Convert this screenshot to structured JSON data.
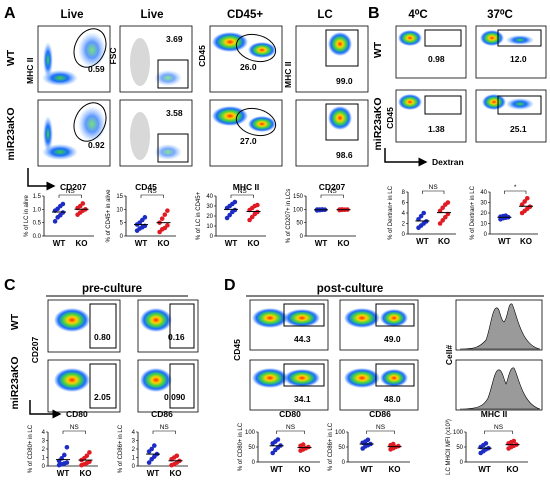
{
  "panel_labels": {
    "A": "A",
    "B": "B",
    "C": "C",
    "D": "D"
  },
  "panel_A": {
    "col_headers": [
      "Live",
      "Live",
      "CD45+",
      "LC"
    ],
    "row_labels": [
      "WT",
      "miR23aKO"
    ],
    "plot_axes": [
      {
        "x": "CD207",
        "y": "MHC II"
      },
      {
        "x": "CD45",
        "y": "FSC"
      },
      {
        "x": "MHC II",
        "y": "CD45"
      },
      {
        "x": "CD207",
        "y": "MHC II"
      }
    ],
    "gate_values": {
      "WT": [
        "0.59",
        "3.69",
        "26.0",
        "99.0"
      ],
      "KO": [
        "0.92",
        "3.58",
        "27.0",
        "98.6"
      ]
    }
  },
  "panel_B": {
    "col_headers": [
      "4⁰C",
      "37⁰C"
    ],
    "row_labels": [
      "WT",
      "miR23aKO"
    ],
    "y_axis": "CD45",
    "x_axis": "Dextran",
    "gate_values": {
      "WT": [
        "0.98",
        "12.0"
      ],
      "KO": [
        "1.38",
        "25.1"
      ]
    }
  },
  "panel_C": {
    "title": "pre-culture",
    "row_labels": [
      "WT",
      "miR23aKO"
    ],
    "y_axis": "CD207",
    "x_axes": [
      "CD80",
      "CD86"
    ],
    "gate_values": {
      "WT": [
        "0.80",
        "0.16"
      ],
      "KO": [
        "2.05",
        "0.090"
      ]
    }
  },
  "panel_D": {
    "title": "post-culture",
    "y_axis": "CD45",
    "hist_y_axis": "Cell#",
    "x_axes": [
      "CD80",
      "CD86",
      "MHC II"
    ],
    "gate_values": {
      "WT": [
        "44.3",
        "49.0"
      ],
      "KO": [
        "34.1",
        "48.0"
      ]
    }
  },
  "chart_data": [
    {
      "type": "scatter",
      "panel": "A",
      "ylabel": "% of LC in alive",
      "categories": [
        "WT",
        "KO"
      ],
      "ylim": [
        0,
        1.5
      ],
      "yticks": [
        "0.0",
        "0.5",
        "1.0",
        "1.5"
      ],
      "significance": "NS",
      "color": "#1c2cc4",
      "series": [
        {
          "name": "WT",
          "values": [
            0.55,
            0.7,
            0.78,
            0.88,
            0.95,
            1.02,
            1.12,
            1.2
          ],
          "color": "#1c2cc4"
        },
        {
          "name": "KO",
          "values": [
            0.8,
            0.88,
            0.95,
            1.0,
            1.05,
            1.12,
            1.22
          ],
          "color": "#e01b24"
        }
      ]
    },
    {
      "type": "scatter",
      "panel": "A",
      "ylabel": "% of CD45+ in alive",
      "categories": [
        "WT",
        "KO"
      ],
      "ylim": [
        0,
        15
      ],
      "yticks": [
        "0",
        "5",
        "10",
        "15"
      ],
      "significance": "NS",
      "series": [
        {
          "name": "WT",
          "values": [
            2.0,
            2.8,
            3.3,
            3.8,
            4.3,
            5.0,
            6.0,
            7.0
          ],
          "color": "#1c2cc4"
        },
        {
          "name": "KO",
          "values": [
            1.5,
            2.5,
            3.0,
            4.0,
            5.0,
            6.5,
            8.0,
            9.5
          ],
          "color": "#e01b24"
        }
      ]
    },
    {
      "type": "scatter",
      "panel": "A",
      "ylabel": "% of LC in CD45+",
      "categories": [
        "WT",
        "KO"
      ],
      "ylim": [
        0,
        40
      ],
      "yticks": [
        "0",
        "10",
        "20",
        "30",
        "40"
      ],
      "significance": "NS",
      "series": [
        {
          "name": "WT",
          "values": [
            18,
            21,
            24,
            26,
            28,
            30,
            32,
            34
          ],
          "color": "#1c2cc4"
        },
        {
          "name": "KO",
          "values": [
            16,
            19,
            22,
            24,
            26,
            28,
            30,
            31
          ],
          "color": "#e01b24"
        }
      ]
    },
    {
      "type": "scatter",
      "panel": "A",
      "ylabel": "% of CD207+ in LCs",
      "categories": [
        "WT",
        "KO"
      ],
      "ylim": [
        0,
        150
      ],
      "yticks": [
        "0",
        "50",
        "100",
        "150"
      ],
      "significance": "NS",
      "series": [
        {
          "name": "WT",
          "values": [
            96,
            97,
            98,
            98.5,
            99,
            99.2,
            99.5
          ],
          "color": "#1c2cc4"
        },
        {
          "name": "KO",
          "values": [
            97,
            98,
            98.5,
            99,
            99.3,
            99.6
          ],
          "color": "#e01b24"
        }
      ]
    },
    {
      "type": "scatter",
      "panel": "B",
      "ylabel": "% of Dextran+ in LC",
      "categories": [
        "WT",
        "KO"
      ],
      "ylim": [
        0,
        8
      ],
      "yticks": [
        "0",
        "2",
        "4",
        "6",
        "8"
      ],
      "significance": "NS",
      "series": [
        {
          "name": "WT",
          "values": [
            1.2,
            1.6,
            2.0,
            2.4,
            2.8,
            3.4,
            4.0
          ],
          "color": "#1c2cc4"
        },
        {
          "name": "KO",
          "values": [
            2.0,
            2.6,
            3.2,
            3.8,
            4.4,
            5.0,
            5.6,
            6.0
          ],
          "color": "#e01b24"
        }
      ]
    },
    {
      "type": "scatter",
      "panel": "B",
      "ylabel": "% of Dextran+ in LC",
      "categories": [
        "WT",
        "KO"
      ],
      "ylim": [
        0,
        40
      ],
      "yticks": [
        "0",
        "10",
        "20",
        "30",
        "40"
      ],
      "significance": "*",
      "series": [
        {
          "name": "WT",
          "values": [
            14,
            15,
            15.5,
            16,
            16.5,
            17,
            17.5
          ],
          "color": "#1c2cc4"
        },
        {
          "name": "KO",
          "values": [
            20,
            22,
            24,
            26,
            28,
            31,
            34
          ],
          "color": "#e01b24"
        }
      ]
    },
    {
      "type": "scatter",
      "panel": "C",
      "ylabel": "% of CD80+ in LC",
      "categories": [
        "WT",
        "KO"
      ],
      "ylim": [
        0,
        4
      ],
      "yticks": [
        "0",
        "1",
        "2",
        "3",
        "4"
      ],
      "significance": "NS",
      "series": [
        {
          "name": "WT",
          "values": [
            0.1,
            0.2,
            0.3,
            0.4,
            0.6,
            0.9,
            1.3,
            2.2
          ],
          "color": "#1c2cc4"
        },
        {
          "name": "KO",
          "values": [
            0.1,
            0.2,
            0.35,
            0.5,
            0.7,
            0.9,
            1.2,
            1.6
          ],
          "color": "#e01b24"
        }
      ]
    },
    {
      "type": "scatter",
      "panel": "C",
      "ylabel": "% of CD86+ in LC",
      "categories": [
        "WT",
        "KO"
      ],
      "ylim": [
        0,
        4
      ],
      "yticks": [
        "0",
        "1",
        "2",
        "3",
        "4"
      ],
      "significance": "NS",
      "series": [
        {
          "name": "WT",
          "values": [
            0.4,
            0.8,
            1.1,
            1.4,
            1.7,
            2.0,
            2.4
          ],
          "color": "#1c2cc4"
        },
        {
          "name": "KO",
          "values": [
            0.1,
            0.2,
            0.4,
            0.6,
            0.8,
            1.0,
            1.2
          ],
          "color": "#e01b24"
        }
      ]
    },
    {
      "type": "scatter",
      "panel": "D",
      "ylabel": "% of CD80+ in LC",
      "categories": [
        "WT",
        "KO"
      ],
      "ylim": [
        0,
        100
      ],
      "yticks": [
        "0",
        "50",
        "100"
      ],
      "significance": "NS",
      "series": [
        {
          "name": "WT",
          "values": [
            30,
            40,
            48,
            55,
            62,
            68,
            75
          ],
          "color": "#1c2cc4"
        },
        {
          "name": "KO",
          "values": [
            38,
            42,
            46,
            50,
            54,
            58
          ],
          "color": "#e01b24"
        }
      ]
    },
    {
      "type": "scatter",
      "panel": "D",
      "ylabel": "% of CD86+ in LC",
      "categories": [
        "WT",
        "KO"
      ],
      "ylim": [
        0,
        100
      ],
      "yticks": [
        "0",
        "50",
        "100"
      ],
      "significance": "NS",
      "series": [
        {
          "name": "WT",
          "values": [
            45,
            52,
            56,
            60,
            64,
            68,
            74
          ],
          "color": "#1c2cc4"
        },
        {
          "name": "KO",
          "values": [
            42,
            46,
            50,
            53,
            56,
            60
          ],
          "color": "#e01b24"
        }
      ]
    },
    {
      "type": "scatter",
      "panel": "D",
      "ylabel": "LC MHCII MFI (x10³)",
      "categories": [
        "WT",
        "KO"
      ],
      "ylim": [
        0,
        100
      ],
      "yticks": [
        "0",
        "50",
        "100"
      ],
      "significance": "NS",
      "series": [
        {
          "name": "WT",
          "values": [
            30,
            36,
            42,
            46,
            50,
            56,
            62
          ],
          "color": "#1c2cc4"
        },
        {
          "name": "KO",
          "values": [
            45,
            50,
            54,
            58,
            62,
            66,
            70
          ],
          "color": "#e01b24"
        }
      ]
    }
  ]
}
